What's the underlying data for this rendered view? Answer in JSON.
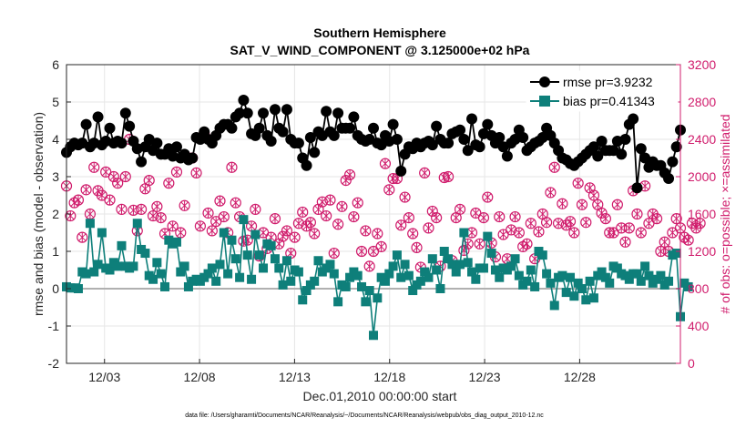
{
  "chart_data": {
    "type": "line",
    "title": "Southern Hemisphere",
    "subtitle": "SAT_V_WIND_COMPONENT @ 3.125000e+02 hPa",
    "xlabel": "Dec.01,2010 00:00:00 start",
    "ylabel": "rmse and bias (model - observation)",
    "ylabel_right": "# of obs: o=possible; ×=assimilated",
    "xlim": [
      0,
      32.3
    ],
    "ylim": [
      -2,
      6
    ],
    "ylim_right": [
      0,
      3200
    ],
    "x_ticks": [
      2,
      7,
      12,
      17,
      22,
      27
    ],
    "x_tick_labels": [
      "12/03",
      "12/08",
      "12/13",
      "12/18",
      "12/23",
      "12/28"
    ],
    "y_ticks": [
      -2,
      -1,
      0,
      1,
      2,
      3,
      4,
      5,
      6
    ],
    "y_ticks_right": [
      0,
      400,
      800,
      1200,
      1600,
      2000,
      2400,
      2800,
      3200
    ],
    "grid": true,
    "legend_position": "top-right",
    "series": [
      {
        "name": "rmse pr=3.9232",
        "axis": "left",
        "color": "#000000",
        "marker": "circle",
        "values": [
          3.65,
          3.8,
          3.9,
          3.85,
          3.9,
          4.4,
          3.8,
          3.9,
          4.6,
          3.85,
          3.95,
          4.3,
          3.9,
          3.95,
          3.9,
          4.7,
          4.35,
          3.95,
          3.75,
          3.4,
          3.8,
          4.0,
          3.7,
          3.9,
          3.6,
          3.6,
          3.75,
          3.55,
          3.8,
          3.5,
          3.6,
          3.45,
          3.5,
          4.05,
          4.0,
          4.2,
          4.0,
          3.9,
          4.1,
          4.3,
          4.4,
          4.4,
          4.3,
          4.6,
          4.7,
          5.05,
          4.7,
          4.15,
          4.1,
          4.3,
          4.7,
          4.1,
          3.95,
          4.8,
          4.3,
          4.2,
          4.8,
          4.0,
          3.9,
          3.9,
          3.5,
          3.3,
          4.05,
          3.65,
          4.2,
          4.1,
          4.75,
          4.2,
          4.1,
          4.7,
          4.3,
          4.3,
          4.3,
          4.6,
          4.1,
          4.0,
          3.95,
          4.0,
          4.3,
          3.9,
          3.85,
          4.1,
          3.95,
          4.4,
          4.0,
          3.15,
          3.6,
          3.8,
          3.75,
          3.9,
          3.8,
          3.9,
          3.95,
          3.85,
          4.35,
          4.0,
          3.9,
          3.9,
          4.15,
          4.2,
          4.25,
          4.0,
          3.7,
          4.55,
          3.85,
          3.8,
          4.15,
          4.4,
          4.1,
          3.9,
          4.05,
          3.8,
          3.55,
          3.9,
          4.0,
          4.25,
          4.05,
          3.7,
          3.8,
          3.9,
          3.95,
          4.05,
          4.3,
          4.1,
          3.9,
          3.7,
          3.5,
          3.45,
          3.35,
          3.3,
          3.4,
          3.5,
          3.6,
          3.7,
          3.8,
          3.55,
          3.95,
          3.7,
          3.7,
          3.7,
          3.95,
          3.6,
          4.0,
          4.4,
          4.55,
          2.7,
          3.75,
          3.5,
          3.25,
          3.4,
          3.3,
          3.3,
          3.1,
          2.95,
          3.4,
          3.8,
          4.25
        ]
      },
      {
        "name": "bias pr=0.41343",
        "axis": "left",
        "color": "#0e7f7a",
        "marker": "square",
        "values": [
          0.05,
          0.02,
          0.02,
          0.0,
          0.45,
          0.4,
          1.75,
          0.45,
          0.65,
          1.5,
          0.55,
          0.5,
          0.7,
          0.6,
          1.15,
          0.6,
          0.55,
          0.6,
          1.75,
          1.05,
          0.95,
          0.35,
          0.25,
          0.7,
          0.4,
          0.05,
          1.3,
          1.2,
          1.25,
          0.45,
          0.6,
          0.05,
          0.2,
          0.25,
          0.2,
          0.3,
          0.4,
          0.55,
          0.2,
          0.65,
          1.5,
          0.4,
          1.3,
          0.8,
          0.3,
          1.85,
          0.9,
          0.25,
          1.45,
          0.9,
          0.55,
          1.2,
          1.15,
          0.8,
          0.55,
          0.1,
          0.75,
          0.2,
          0.5,
          0.45,
          -0.3,
          -0.05,
          0.1,
          0.2,
          0.75,
          0.45,
          0.55,
          0.65,
          0.4,
          -0.35,
          0.1,
          0.05,
          0.3,
          0.45,
          0.35,
          0.05,
          -0.35,
          -0.05,
          -1.25,
          -0.25,
          0.3,
          0.2,
          0.4,
          0.6,
          0.9,
          0.3,
          0.65,
          0.35,
          -0.05,
          0.1,
          0.2,
          0.45,
          0.3,
          0.8,
          0.5,
          0.0,
          1.0,
          0.8,
          0.65,
          0.45,
          0.65,
          1.5,
          0.7,
          0.45,
          0.25,
          0.55,
          0.55,
          1.4,
          0.95,
          0.5,
          0.3,
          0.55,
          0.5,
          0.6,
          0.8,
          0.35,
          0.1,
          0.2,
          0.5,
          0.05,
          1.0,
          0.9,
          0.4,
          0.15,
          -0.45,
          0.3,
          0.35,
          -0.1,
          0.3,
          -0.2,
          0.15,
          0.0,
          -0.3,
          0.2,
          -0.25,
          0.35,
          0.45,
          0.3,
          0.15,
          0.6,
          0.55,
          0.4,
          0.35,
          0.25,
          0.4,
          0.4,
          0.2,
          0.6,
          0.35,
          0.15,
          0.25,
          0.35,
          0.1,
          0.2,
          0.9,
          0.95,
          -0.75,
          0.15,
          0.05
        ]
      },
      {
        "name": "possible",
        "axis": "right",
        "color": "#d01c6c",
        "marker": "open-circle",
        "values": [
          1900,
          1580,
          1720,
          1750,
          1350,
          1860,
          1600,
          2100,
          1850,
          1800,
          2050,
          1750,
          2000,
          1930,
          1650,
          2000,
          2400,
          1640,
          1420,
          1650,
          1870,
          1960,
          1580,
          1680,
          1560,
          1390,
          1930,
          1470,
          2050,
          1400,
          1690,
          2200,
          2200,
          2040,
          1470,
          2460,
          1610,
          1420,
          1520,
          1740,
          1570,
          1400,
          2100,
          1720,
          1570,
          1310,
          1320,
          1470,
          1650,
          1150,
          1400,
          1230,
          1350,
          1550,
          1280,
          1360,
          1420,
          1180,
          1350,
          1500,
          1620,
          1470,
          1510,
          1390,
          1650,
          1730,
          1580,
          1750,
          1180,
          1490,
          1680,
          1960,
          2020,
          1570,
          1720,
          1200,
          1420,
          1040,
          1200,
          1390,
          1250,
          2140,
          1860,
          1980,
          1980,
          1480,
          1780,
          1560,
          1390,
          1240,
          1030,
          2040,
          1450,
          1630,
          1560,
          1040,
          1990,
          2000,
          1100,
          1560,
          1650,
          1210,
          1280,
          1400,
          1610,
          1280,
          1560,
          1780,
          1290,
          1140,
          1570,
          1380,
          1120,
          1430,
          1570,
          1400,
          1250,
          1280,
          1500,
          1120,
          1410,
          1600,
          1510,
          1830,
          2100,
          1500,
          1710,
          1480,
          1520,
          1400,
          1930,
          1700,
          1510,
          1880,
          1800,
          1700,
          1610,
          1550,
          1400,
          1400,
          1700,
          1450,
          1300,
          1450,
          1850,
          1600,
          1400,
          1900,
          1500,
          1600,
          1550,
          1200,
          1300,
          1200,
          1400,
          1550,
          1450,
          1350,
          1320,
          1500,
          1450,
          1500
        ]
      },
      {
        "name": "assimilated",
        "axis": "right",
        "color": "#d01c6c",
        "marker": "x",
        "values": [
          1900,
          1580,
          1720,
          1750,
          1350,
          1860,
          1600,
          2100,
          1850,
          1800,
          2050,
          1750,
          2000,
          1930,
          1650,
          2000,
          2400,
          1640,
          1420,
          1650,
          1870,
          1960,
          1580,
          1680,
          1560,
          1390,
          1930,
          1470,
          2050,
          1400,
          1690,
          2200,
          2200,
          2040,
          1470,
          2460,
          1610,
          1420,
          1520,
          1740,
          1570,
          1400,
          2100,
          1720,
          1570,
          1310,
          1320,
          1470,
          1650,
          1150,
          1400,
          1230,
          1350,
          1550,
          1280,
          1360,
          1420,
          1180,
          1350,
          1500,
          1620,
          1470,
          1510,
          1390,
          1650,
          1730,
          1580,
          1750,
          1180,
          1490,
          1680,
          1960,
          2020,
          1570,
          1720,
          1200,
          1420,
          1040,
          1200,
          1390,
          1250,
          2140,
          1860,
          1980,
          1980,
          1480,
          1780,
          1560,
          1390,
          1240,
          1030,
          2040,
          1450,
          1630,
          1560,
          1040,
          1990,
          2000,
          1100,
          1560,
          1650,
          1210,
          1280,
          1400,
          1610,
          1280,
          1560,
          1780,
          1290,
          1140,
          1570,
          1380,
          1120,
          1430,
          1570,
          1400,
          1250,
          1280,
          1500,
          1120,
          1410,
          1600,
          1510,
          1830,
          2100,
          1500,
          1710,
          1480,
          1520,
          1400,
          1930,
          1700,
          1510,
          1880,
          1800,
          1700,
          1610,
          1550,
          1400,
          1400,
          1700,
          1450,
          1300,
          1450,
          1850,
          1600,
          1400,
          1900,
          1500,
          1600,
          1550,
          1200,
          1300,
          1200,
          1400,
          1550,
          1450,
          1350,
          1320,
          1500,
          1450,
          1500
        ]
      }
    ],
    "footnote": "data file: /Users/gharamti/Documents/NCAR/Reanalysis/~/Documents/NCAR/Reanalysis/webpub/obs_diag_output_2010-12.nc"
  }
}
